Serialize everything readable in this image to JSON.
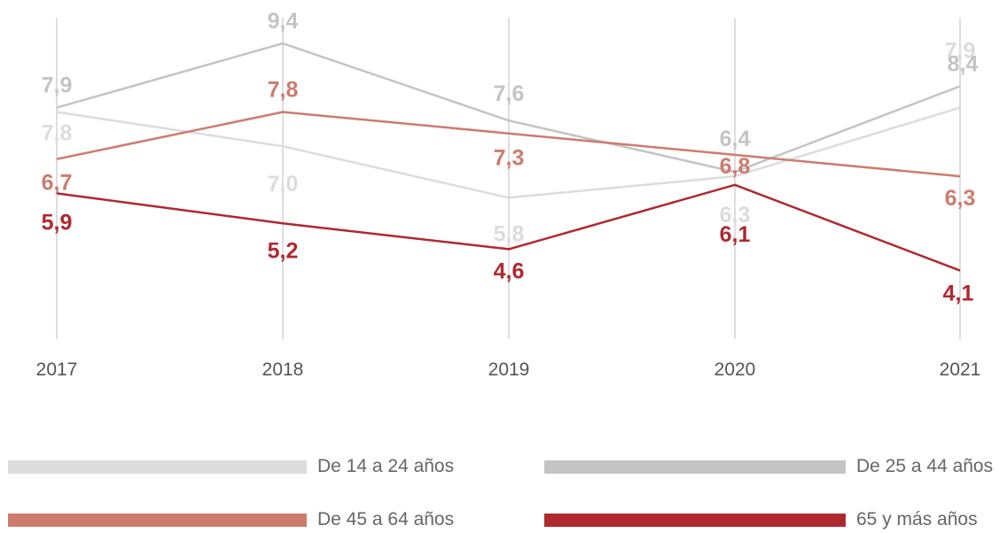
{
  "chart_data": {
    "type": "line",
    "categories": [
      "2017",
      "2018",
      "2019",
      "2020",
      "2021"
    ],
    "series": [
      {
        "name": "De 14 a 24 años",
        "color": "#dcdcdc",
        "values": [
          7.8,
          7.0,
          5.8,
          6.3,
          7.9
        ],
        "labels": [
          "7,8",
          "7,0",
          "5,8",
          "6,3",
          "7,9"
        ]
      },
      {
        "name": "De 25 a 44 años",
        "color": "#c4c4c4",
        "values": [
          7.9,
          9.4,
          7.6,
          6.4,
          8.4
        ],
        "labels": [
          "7,9",
          "9,4",
          "7,6",
          "6,4",
          "8,4"
        ]
      },
      {
        "name": "De 45 a 64 años",
        "color": "#cd7b6e",
        "values": [
          6.7,
          7.8,
          7.3,
          6.8,
          6.3
        ],
        "labels": [
          "6,7",
          "7,8",
          "7,3",
          "6,8",
          "6,3"
        ]
      },
      {
        "name": "65 y más años",
        "color": "#b0282f",
        "values": [
          5.9,
          5.2,
          4.6,
          6.1,
          4.1
        ],
        "labels": [
          "5,9",
          "5,2",
          "4,6",
          "6,1",
          "4,1"
        ]
      }
    ],
    "title": "",
    "xlabel": "",
    "ylabel": "",
    "ylim": [
      2.5,
      10.0
    ],
    "grid": "vertical",
    "legend_position": "bottom"
  }
}
